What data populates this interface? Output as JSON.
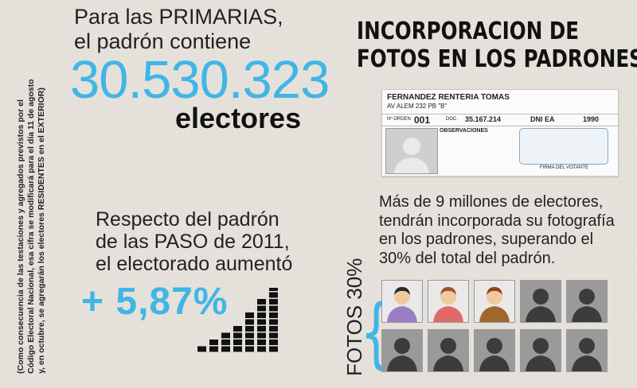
{
  "side_note": {
    "lines": [
      "(Como consecuencia de las testaciones y agregados previstos por el",
      "Código Electoral Nacional, esa cifra se modificará para el día 11 de agosto",
      "y, en octubre, se agregarán los electores RESIDENTES en el EXTERIOR)"
    ]
  },
  "padron": {
    "line1": "Para las PRIMARIAS,",
    "line2": "el padrón contiene",
    "number": "30.530.323",
    "unit": "electores"
  },
  "respecto": {
    "line1": "Respecto del padrón",
    "line2": "de las PASO de 2011,",
    "line3": "el electorado aumentó",
    "percent": "+ 5,87%",
    "bar_levels": [
      1,
      2,
      3,
      4,
      6,
      8,
      10
    ]
  },
  "headline": {
    "line1": "INCORPORACION DE",
    "line2": "FOTOS EN LOS PADRONES"
  },
  "card": {
    "name": "FERNANDEZ RENTERIA TOMAS",
    "address": "AV ALEM 232 PB \"B\"",
    "orden_label": "Nº ORDEN",
    "orden_value": "001",
    "doc_label": "DOC.",
    "doc_value": "35.167.214",
    "dni_label": "DNI EA",
    "year": "1990",
    "obs_label": "OBSERVACIONES",
    "firma_label": "FIRMA DEL VOTANTE"
  },
  "mas": {
    "line1": "Más de 9 millones de electores,",
    "line2": "tendrán incorporada su fotografía",
    "line3": "en los padrones, superando el",
    "line4": "30% del total del padrón."
  },
  "fotos": {
    "label": "FOTOS 30%",
    "tiles": [
      "color-man",
      "color-woman",
      "color-man-suit",
      "silhouette",
      "silhouette",
      "silhouette",
      "silhouette",
      "silhouette",
      "silhouette",
      "silhouette"
    ]
  },
  "colors": {
    "accent": "#3fb6e6",
    "background": "#e7e3dc",
    "text": "#222222"
  }
}
